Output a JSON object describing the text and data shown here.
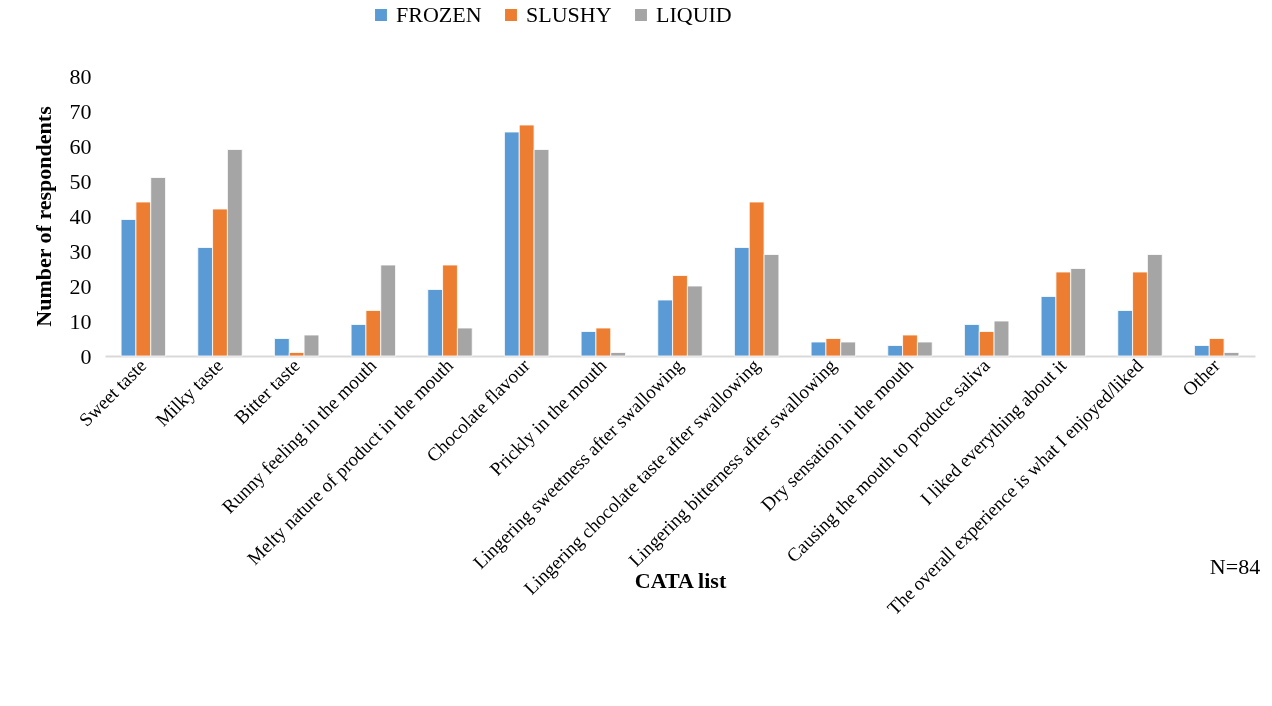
{
  "chart_data": {
    "type": "bar",
    "xlabel": "CATA list",
    "ylabel": "Number of respondents",
    "categories": [
      "Sweet taste",
      "Milky taste",
      "Bitter taste",
      "Runny feeling in the mouth",
      "Melty nature of product in the mouth",
      "Chocolate flavour",
      "Prickly in the mouth",
      "Lingering sweetness after swallowing",
      "Lingering chocolate taste after swallowing",
      "Lingering bitterness after swallowing",
      "Dry sensation in the mouth",
      "Causing the mouth to produce saliva",
      "I liked everything about it",
      "The overall experience is what I enjoyed/liked",
      "Other"
    ],
    "series": [
      {
        "name": "FROZEN",
        "color": "#5b9bd5",
        "values": [
          39,
          31,
          5,
          9,
          19,
          64,
          7,
          16,
          31,
          4,
          3,
          9,
          17,
          13,
          3
        ]
      },
      {
        "name": "SLUSHY",
        "color": "#ed7d31",
        "values": [
          44,
          42,
          1,
          13,
          26,
          66,
          8,
          23,
          44,
          5,
          6,
          7,
          24,
          24,
          5
        ]
      },
      {
        "name": "LIQUID",
        "color": "#a5a5a5",
        "values": [
          51,
          59,
          6,
          26,
          8,
          59,
          1,
          20,
          29,
          4,
          4,
          10,
          25,
          29,
          1
        ]
      }
    ],
    "ylim": [
      0,
      80
    ],
    "yticks": [
      0,
      10,
      20,
      30,
      40,
      50,
      60,
      70,
      80
    ],
    "grid": false,
    "legend": "top",
    "annotations": [
      "N=84"
    ]
  }
}
